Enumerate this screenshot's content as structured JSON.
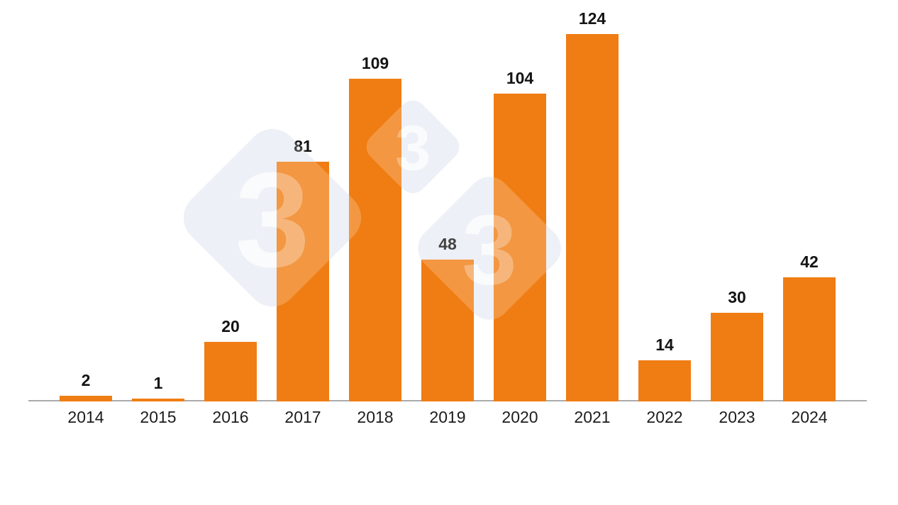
{
  "chart_data": {
    "type": "bar",
    "categories": [
      "2014",
      "2015",
      "2016",
      "2017",
      "2018",
      "2019",
      "2020",
      "2021",
      "2022",
      "2023",
      "2024"
    ],
    "values": [
      2,
      1,
      20,
      81,
      109,
      48,
      104,
      124,
      14,
      30,
      42
    ],
    "title": "",
    "xlabel": "",
    "ylabel": "",
    "ylim": [
      0,
      130
    ],
    "grid": false,
    "legend": false,
    "y_axis_visible": false,
    "x_axis_line_visible": true,
    "value_labels_shown": true,
    "bar_color": "#F07D13",
    "value_label_color": "#141414",
    "tick_label_color": "#1C1C1C",
    "axis_line_color": "#ABABAB"
  },
  "watermark": {
    "name": "pig333-logo",
    "digit": "3",
    "diamond_color": "#E9EDF4",
    "digit_color": "#F7F9FC"
  }
}
